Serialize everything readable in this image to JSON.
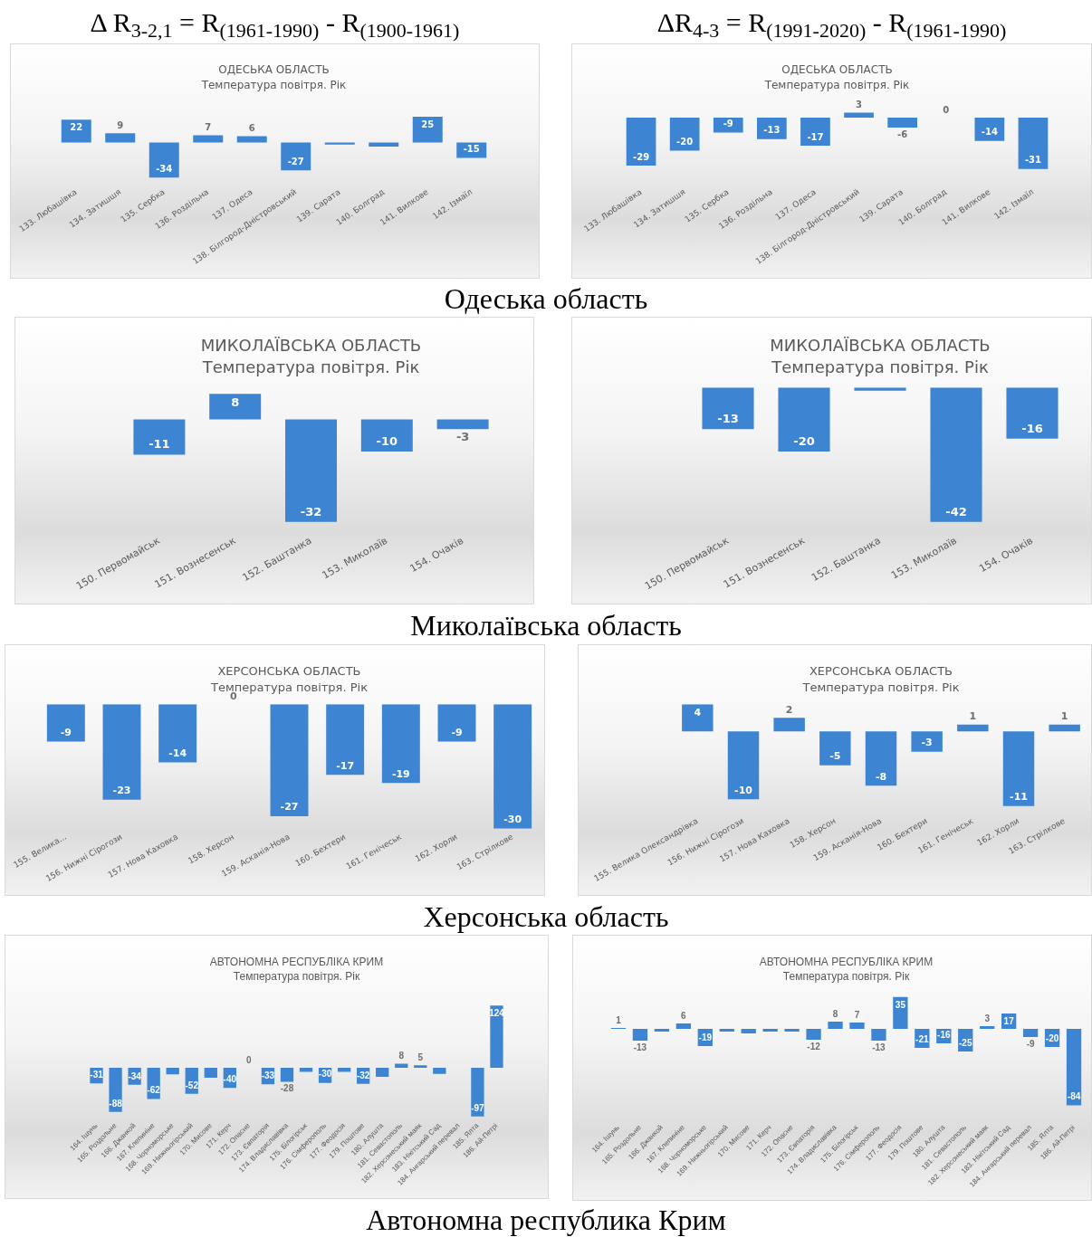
{
  "chart_data": [
    {
      "type": "bar",
      "title": "ОДЕСЬКА ОБЛАСТЬ",
      "subtitle": "Температура повітря. Рік",
      "tick_labels": "x",
      "color": "#3d85d2",
      "categories": [
        "133. Любашівка",
        "134. Затишшя",
        "135. Сербка",
        "136. Роздільна",
        "137. Одеса",
        "138. Білгород-Дністровський",
        "139. Сарата",
        "140. Болград",
        "141. Вилкове",
        "142. Ізмаїл"
      ],
      "values": [
        22,
        9,
        -34,
        7,
        6,
        -27,
        -2,
        -4,
        25,
        -15
      ],
      "value_labels": [
        "22",
        "9",
        "-34",
        "7",
        "6",
        "-27",
        null,
        null,
        "25",
        "-15"
      ],
      "annotations": [
        "Δ R$_{3-2,1}$ = R$_{(1961-1990)}$ - R$_{(1900-1961)}$",
        "Одеська область"
      ]
    },
    {
      "type": "bar",
      "title": "ОДЕСЬКА ОБЛАСТЬ",
      "subtitle": "Температура повітря. Рік",
      "tick_labels": "x",
      "color": "#3d85d2",
      "categories": [
        "133. Любашівка",
        "134. Затишшя",
        "135. Сербка",
        "136. Роздільна",
        "137. Одеса",
        "138. Білгород-Дністровський",
        "139. Сарата",
        "140. Болград",
        "141. Вилкове",
        "142. Ізмаїл"
      ],
      "values": [
        -29,
        -20,
        -9,
        -13,
        -17,
        3,
        -6,
        0,
        -14,
        -31
      ],
      "value_labels": [
        "-29",
        "-20",
        "-9",
        "-13",
        "-17",
        "3",
        "-6",
        "0",
        "-14",
        "-31"
      ],
      "annotations": [
        "ΔR$_{4-3}$ = R$_{(1991-2020)}$ - R$_{(1961-1990)}$"
      ]
    },
    {
      "type": "bar",
      "title": "МИКОЛАЇВСЬКА ОБЛАСТЬ",
      "subtitle": "Температура повітря. Рік",
      "tick_labels": "x",
      "color": "#3d85d2",
      "categories": [
        "150. Первомайськ",
        "151. Вознесенськ",
        "152. Баштанка",
        "153. Миколаїв",
        "154. Очаків"
      ],
      "values": [
        -11,
        8,
        -32,
        -10,
        -3
      ],
      "value_labels": [
        "-11",
        "8",
        "-32",
        "-10",
        "-3"
      ],
      "annotations": [
        "Миколаївська область"
      ]
    },
    {
      "type": "bar",
      "title": "МИКОЛАЇВСЬКА ОБЛАСТЬ",
      "subtitle": "Температура повітря. Рік",
      "tick_labels": "x",
      "color": "#3d85d2",
      "categories": [
        "150. Первомайськ",
        "151. Вознесенськ",
        "152. Баштанка",
        "153. Миколаїв",
        "154. Очаків"
      ],
      "values": [
        -13,
        -20,
        -1,
        -42,
        -16
      ],
      "value_labels": [
        "-13",
        "-20",
        null,
        "-42",
        "-16"
      ]
    },
    {
      "type": "bar",
      "title": "ХЕРСОНСЬКА ОБЛАСТЬ",
      "subtitle": "Температура повітря. Рік",
      "tick_labels": "x",
      "color": "#3d85d2",
      "categories": [
        "155. Велика...",
        "156. Нижні Сірогози",
        "157. Нова Каховка",
        "158. Херсон",
        "159. Асканія-Нова",
        "160. Бехтери",
        "161. Генічеськ",
        "162. Хорли",
        "163. Стрілкове"
      ],
      "values": [
        -9,
        -23,
        -14,
        0,
        -27,
        -17,
        -19,
        -9,
        -30
      ],
      "value_labels": [
        "-9",
        "-23",
        "-14",
        "0",
        "-27",
        "-17",
        "-19",
        "-9",
        "-30"
      ],
      "annotations": [
        "Херсонська область"
      ]
    },
    {
      "type": "bar",
      "title": "ХЕРСОНСЬКА ОБЛАСТЬ",
      "subtitle": "Температура повітря. Рік",
      "tick_labels": "x",
      "color": "#3d85d2",
      "categories": [
        "155. Велика Олександрівка",
        "156. Нижні Сірогози",
        "157. Нова Каховка",
        "158. Херсон",
        "159. Асканія-Нова",
        "160. Бехтери",
        "161. Генічеськ",
        "162. Хорли",
        "163. Стрілкове"
      ],
      "values": [
        4,
        -10,
        2,
        -5,
        -8,
        -3,
        1,
        -11,
        1
      ],
      "value_labels": [
        "4",
        "-10",
        "2",
        "-5",
        "-8",
        "-3",
        "1",
        "-11",
        "1"
      ]
    },
    {
      "type": "bar",
      "title": "АВТОНОМНА РЕСПУБЛІКА КРИМ",
      "subtitle": "Температура повітря. Рік",
      "tick_labels": "x",
      "color": "#3d85d2",
      "categories": [
        "164. Ішунь",
        "165. Роздольне",
        "166. Джанкой",
        "167. Клепиніне",
        "168. Чорноморське",
        "169. Нижньогірський",
        "170. Мисове",
        "171. Керч",
        "172. Опасне",
        "173. Євпаторія",
        "174. Владиславівка",
        "175. Білогірськ",
        "176. Сімферополь",
        "177. Феодосія",
        "179. Поштове",
        "180. Алушта",
        "181. Севастополь",
        "182. Херсонеський маяк",
        "183. Нікітський Сад",
        "184. Ангарський перевал",
        "185. Ялта",
        "186. Ай-Петрі"
      ],
      "values": [
        -31,
        -88,
        -34,
        -62,
        -13,
        -52,
        -20,
        -40,
        0,
        -33,
        -28,
        -8,
        -30,
        -8,
        -32,
        -18,
        8,
        5,
        -12,
        null,
        -97,
        124
      ],
      "value_labels": [
        "-31",
        "-88",
        "-34",
        "-62",
        null,
        "-52",
        null,
        "-40",
        "0",
        "-33",
        "-28",
        null,
        "-30",
        null,
        "-32",
        null,
        "8",
        "5",
        null,
        null,
        "-97",
        "124"
      ],
      "annotations": [
        "Автономна республика Крим"
      ]
    },
    {
      "type": "bar",
      "title": "АВТОНОМНА РЕСПУБЛІКА КРИМ",
      "subtitle": "Температура повітря. Рік",
      "tick_labels": "x",
      "color": "#3d85d2",
      "categories": [
        "164. Ішунь",
        "165. Роздольне",
        "166. Джанкой",
        "167. Клепиніне",
        "168. Чорноморське",
        "169. Нижньогірський",
        "170. Мисове",
        "171. Керч",
        "172. Опасне",
        "173. Євпаторія",
        "174. Владиславівка",
        "175. Білогірськ",
        "176. Сімферополь",
        "177. Феодосія",
        "179. Поштове",
        "180. Алушта",
        "181. Севастополь",
        "182. Херсонеський маяк",
        "183. Нікітський Сад",
        "184. Ангарський перевал",
        "185. Ялта",
        "186. Ай-Петрі"
      ],
      "values": [
        1,
        -13,
        -3,
        6,
        -19,
        -3,
        -5,
        -3,
        -3,
        -12,
        8,
        7,
        -13,
        35,
        -21,
        -16,
        -25,
        3,
        17,
        -9,
        -20,
        -84
      ],
      "value_labels": [
        "1",
        "-13",
        null,
        "6",
        "-19",
        null,
        null,
        null,
        null,
        "-12",
        "8",
        "7",
        "-13",
        "35",
        "-21",
        "-16",
        "-25",
        "3",
        "17",
        "-9",
        "-20",
        "-84"
      ]
    }
  ]
}
